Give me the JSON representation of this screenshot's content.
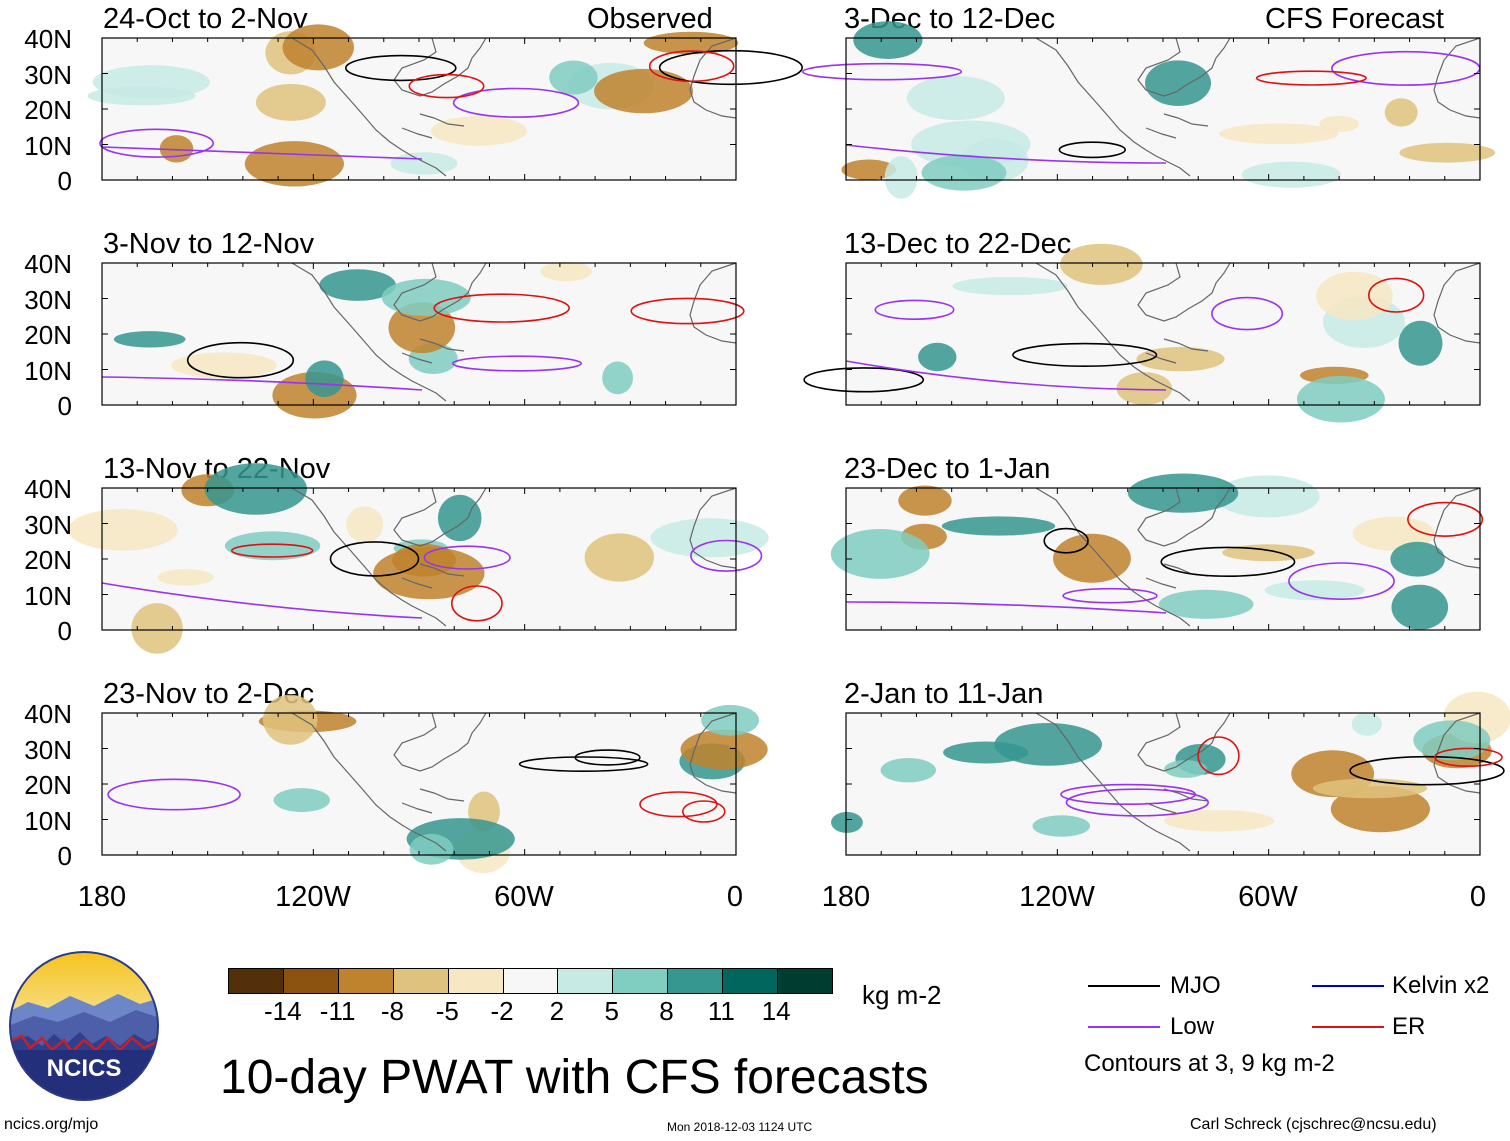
{
  "title": "10-day PWAT with CFS forecasts",
  "observed_label": "Observed",
  "forecast_label": "CFS Forecast",
  "y_ticks": [
    "40N",
    "30N",
    "20N",
    "10N",
    "0"
  ],
  "x_ticks": [
    "180",
    "120W",
    "60W",
    "0"
  ],
  "panels_left": [
    {
      "title": "24-Oct to 2-Nov"
    },
    {
      "title": "3-Nov to 12-Nov"
    },
    {
      "title": "13-Nov to 22-Nov"
    },
    {
      "title": "23-Nov to 2-Dec"
    }
  ],
  "panels_right": [
    {
      "title": "3-Dec to 12-Dec"
    },
    {
      "title": "13-Dec to 22-Dec"
    },
    {
      "title": "23-Dec to 1-Jan"
    },
    {
      "title": "2-Jan to 11-Jan"
    }
  ],
  "colorbar": {
    "unit": "kg m-2",
    "labels": [
      "-14",
      "-11",
      "-8",
      "-5",
      "-2",
      "2",
      "5",
      "8",
      "11",
      "14"
    ],
    "colors": [
      "#54300a",
      "#8c5210",
      "#bf822d",
      "#dfc27d",
      "#f6e8c3",
      "#f7f7f7",
      "#c7eae5",
      "#80cdc1",
      "#35978f",
      "#01665e",
      "#003c30"
    ]
  },
  "legend": {
    "mjo": "MJO",
    "kelvin": "Kelvin x2",
    "low": "Low",
    "er": "ER",
    "contours": "Contours at 3, 9 kg m-2",
    "colors": {
      "mjo": "#000000",
      "kelvin": "#0000cc",
      "low": "#9933ee",
      "er": "#dd1111"
    }
  },
  "logo_text": "NCICS",
  "footer": {
    "left": "ncics.org/mjo",
    "center": "Mon 2018-12-03 1124 UTC",
    "right": "Carl Schreck (cjschrec@ncsu.edu)"
  }
}
